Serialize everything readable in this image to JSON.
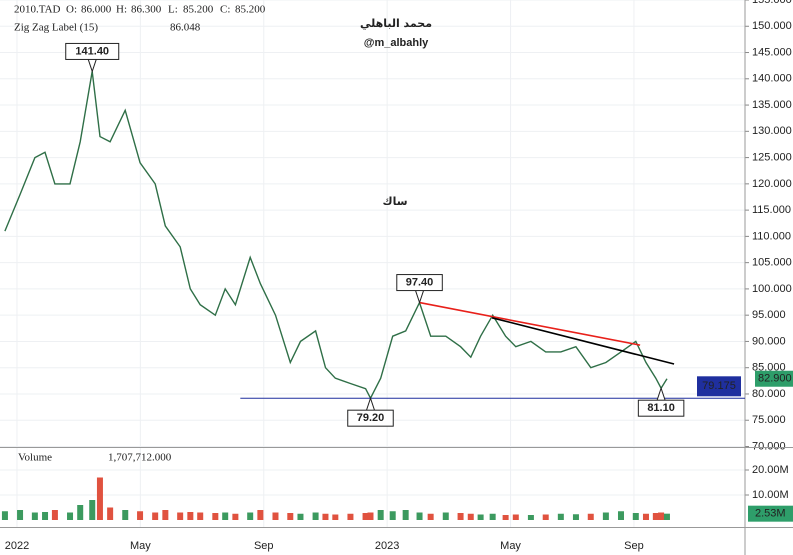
{
  "chart_data": [
    {
      "type": "line",
      "symbol": "2010.TAD",
      "ohlc_labels": [
        "O:",
        "H:",
        "L:",
        "C:"
      ],
      "ohlc": [
        {
          "value": 86,
          "label": "86.000"
        },
        {
          "value": 86.3,
          "label": "86.300"
        },
        {
          "value": 85.2,
          "label": "85.200"
        },
        {
          "value": 85.2,
          "label": "85.200"
        }
      ],
      "indicator": "Zig Zag Label (15)",
      "indicator_value": {
        "value": 86.048,
        "label": "86.048"
      },
      "author": "محمد الباهلي",
      "handle": "@m_albahly",
      "watermark": "ساك",
      "grid": true,
      "xlim": [
        -0.55,
        23.6
      ],
      "xticks": [
        {
          "value": 0,
          "label": "2022"
        },
        {
          "value": 4,
          "label": "May"
        },
        {
          "value": 8,
          "label": "Sep"
        },
        {
          "value": 12,
          "label": "2023"
        },
        {
          "value": 16,
          "label": "May"
        },
        {
          "value": 20,
          "label": "Sep"
        }
      ],
      "ylim": [
        70,
        155
      ],
      "yticks": [
        {
          "value": 70,
          "label": "70.000"
        },
        {
          "value": 75,
          "label": "75.000"
        },
        {
          "value": 80,
          "label": "80.000"
        },
        {
          "value": 85,
          "label": "85.000"
        },
        {
          "value": 90,
          "label": "90.000"
        },
        {
          "value": 95,
          "label": "95.000"
        },
        {
          "value": 100,
          "label": "100.000"
        },
        {
          "value": 105,
          "label": "105.000"
        },
        {
          "value": 110,
          "label": "110.000"
        },
        {
          "value": 115,
          "label": "115.000"
        },
        {
          "value": 120,
          "label": "120.000"
        },
        {
          "value": 125,
          "label": "125.000"
        },
        {
          "value": 130,
          "label": "130.000"
        },
        {
          "value": 135,
          "label": "135.000"
        },
        {
          "value": 140,
          "label": "140.000"
        },
        {
          "value": 145,
          "label": "145.000"
        },
        {
          "value": 150,
          "label": "150.000"
        },
        {
          "value": 155,
          "label": "155.000"
        }
      ],
      "up_color": "#3c9a5f",
      "down_color": "#e0523f",
      "series": [
        {
          "color": "#2f6f47",
          "x": [
            -0.39,
            0.1,
            0.58,
            0.91,
            1.23,
            1.72,
            2.05,
            2.44,
            2.69,
            3.02,
            3.51,
            3.99,
            4.48,
            4.81,
            5.29,
            5.62,
            5.94,
            6.43,
            6.75,
            7.08,
            7.56,
            7.89,
            8.38,
            8.86,
            9.19,
            9.68,
            10.0,
            10.32,
            10.81,
            11.3,
            11.46,
            11.79,
            12.18,
            12.6,
            13.05,
            13.41,
            13.9,
            14.38,
            14.71,
            15.03,
            15.42,
            15.84,
            16.17,
            16.66,
            17.14,
            17.63,
            18.12,
            18.6,
            19.09,
            19.58,
            20.06,
            20.39,
            20.71,
            20.88,
            21.07
          ],
          "values": [
            111,
            118,
            125,
            126,
            120,
            120,
            128,
            141.4,
            129,
            128,
            134,
            124,
            120,
            112,
            108,
            100,
            97,
            95,
            100,
            97,
            106,
            101,
            95,
            86,
            90,
            92,
            85,
            83,
            82,
            81,
            79.2,
            83,
            91,
            92,
            97.4,
            91,
            91,
            89,
            87,
            91,
            95,
            91,
            89,
            90,
            88,
            88,
            89,
            85,
            86,
            88,
            90,
            86,
            83,
            81.1,
            82.9
          ]
        }
      ],
      "trend_lines": [
        {
          "color": "#e8201a",
          "x": [
            13.05,
            20.2
          ],
          "values": [
            97.4,
            89.3
          ]
        },
        {
          "color": "#000000",
          "x": [
            15.4,
            21.3
          ],
          "values": [
            94.5,
            85.7
          ]
        },
        {
          "color": "#1f2f9e",
          "x": [
            7.24,
            23.6
          ],
          "values": [
            79.175,
            79.175
          ],
          "value_label": "79.175"
        }
      ],
      "annotations": [
        {
          "x": 2.44,
          "value": 141.4,
          "label": "141.40",
          "placement": "above"
        },
        {
          "x": 13.05,
          "value": 97.4,
          "label": "97.40",
          "placement": "above"
        },
        {
          "x": 11.46,
          "value": 79.2,
          "label": "79.20",
          "placement": "below"
        },
        {
          "x": 20.88,
          "value": 81.1,
          "label": "81.10",
          "placement": "below"
        }
      ],
      "last_price": {
        "value": 82.9,
        "label": "82.900",
        "color": "#2e9e6a"
      }
    },
    {
      "type": "bar",
      "title": "Volume",
      "total": {
        "value": 1707712,
        "label": "1,707,712.000"
      },
      "ylim": [
        0,
        28800000
      ],
      "yticks": [
        {
          "value": 10000000,
          "label": "10.00M"
        },
        {
          "value": 20000000,
          "label": "20.00M"
        }
      ],
      "values": [
        3500000,
        4000000,
        3000000,
        3200000,
        4000000,
        3000000,
        6000000,
        8000000,
        17000000,
        5000000,
        4000000,
        3500000,
        3000000,
        4000000,
        3000000,
        3200000,
        3000000,
        2800000,
        3000000,
        2500000,
        3000000,
        4000000,
        3000000,
        2800000,
        2500000,
        3000000,
        2500000,
        2200000,
        2500000,
        2800000,
        3000000,
        4000000,
        3500000,
        4000000,
        3000000,
        2500000,
        3000000,
        2800000,
        2500000,
        2200000,
        2500000,
        2000000,
        2200000,
        2000000,
        2200000,
        2500000,
        2300000,
        2500000,
        3000000,
        3500000,
        2800000,
        2500000,
        2800000,
        3000000,
        2530000
      ],
      "last_volume": {
        "value": 2530000,
        "label": "2.53M",
        "color": "#2e9e6a"
      }
    }
  ]
}
